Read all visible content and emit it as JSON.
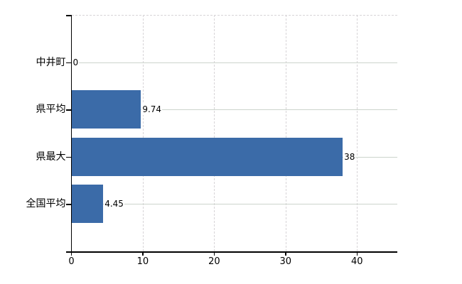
{
  "chart_data": {
    "type": "bar",
    "orientation": "horizontal",
    "title": "",
    "categories": [
      "中井町",
      "県平均",
      "県最大",
      "全国平均"
    ],
    "values": [
      0,
      9.74,
      38,
      4.45
    ],
    "value_labels": [
      "0",
      "9.74",
      "38",
      "4.45"
    ],
    "series": [
      {
        "name": "",
        "values": [
          0,
          9.74,
          38,
          4.45
        ]
      }
    ],
    "xlabel": "",
    "ylabel": "",
    "xlim": [
      0,
      45.6
    ],
    "xticks": [
      0,
      10,
      20,
      30,
      40
    ],
    "xtick_labels": [
      "0",
      "10",
      "20",
      "30",
      "40"
    ],
    "grid": true,
    "legend": false,
    "legend_position": "none",
    "colors": {
      "bar": "#3b6ba8",
      "h_gridline": "#ccd4cc",
      "v_gridline": "#d7d4d7",
      "axis": "#000000",
      "text": "#000000",
      "background": "#ffffff"
    }
  }
}
